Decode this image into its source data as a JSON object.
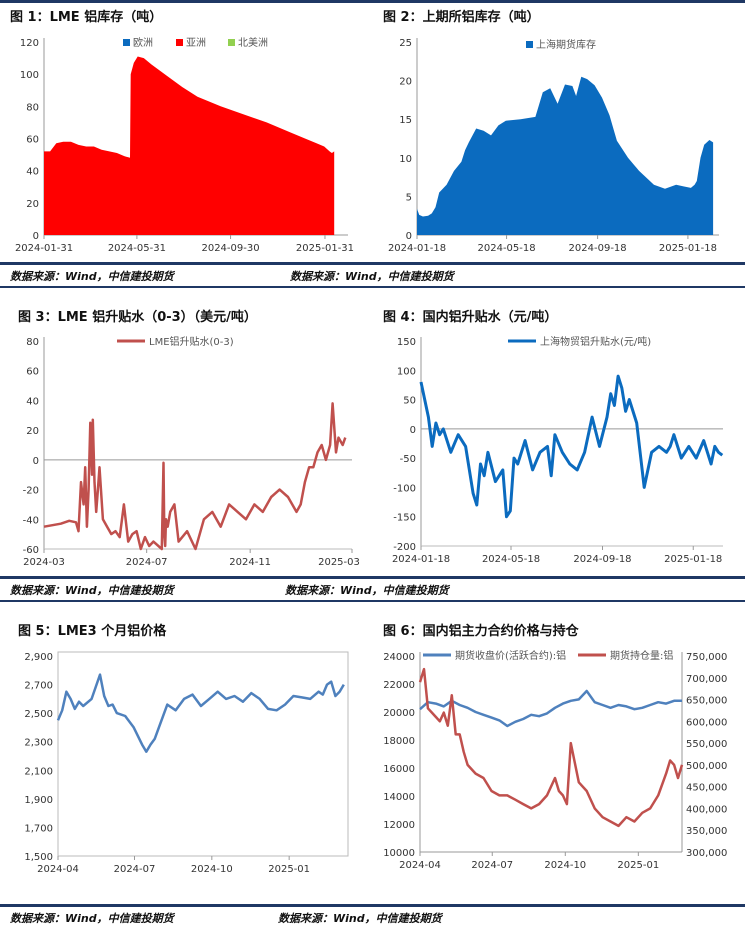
{
  "colors": {
    "navy": "#1f3864",
    "red": "#ff0000",
    "blue": "#0b6bbf",
    "line_red": "#c0504d",
    "line_blue": "#4f81bd",
    "green": "#92d050"
  },
  "figures": [
    {
      "title": "图 1：LME 铝库存（吨）",
      "source": "数据来源：Wind，中信建投期货"
    },
    {
      "title": "图 2：上期所铝库存（吨）",
      "source": "数据来源：Wind，中信建投期货"
    },
    {
      "title": "图 3：LME 铝升贴水（0-3）（美元/吨）",
      "source": "数据来源：Wind，中信建投期货"
    },
    {
      "title": "图 4：国内铝升贴水（元/吨）",
      "source": "数据来源：Wind，中信建投期货"
    },
    {
      "title": "图 5：LME3 个月铝价格",
      "source": ""
    },
    {
      "title": "图 6：国内铝主力合约价格与持仓",
      "source": ""
    }
  ],
  "bottom_sources": [
    "数据来源：Wind，中信建投期货",
    "数据来源：Wind，中信建投期货"
  ],
  "chart_data": [
    {
      "type": "area",
      "title": "图 1：LME 铝库存（吨）",
      "legend": [
        "欧洲",
        "亚洲",
        "北美洲"
      ],
      "legend_colors": [
        "#0b6bbf",
        "#ff0000",
        "#92d050"
      ],
      "ylim": [
        0,
        120
      ],
      "yticks": [
        0,
        20,
        40,
        60,
        80,
        100,
        120
      ],
      "xlim": [
        0,
        396
      ],
      "xticks": [
        {
          "x": 0,
          "label": "2024-01-31"
        },
        {
          "x": 121,
          "label": "2024-05-31"
        },
        {
          "x": 243,
          "label": "2024-09-30"
        },
        {
          "x": 366,
          "label": "2025-01-31"
        }
      ],
      "series": [
        {
          "name": "亚洲",
          "color": "#ff0000",
          "x": [
            0,
            8,
            16,
            25,
            35,
            45,
            55,
            65,
            75,
            85,
            95,
            105,
            112,
            113,
            117,
            122,
            130,
            140,
            160,
            180,
            200,
            230,
            260,
            290,
            320,
            340,
            355,
            365,
            372,
            375,
            378
          ],
          "y": [
            52,
            52,
            57,
            58,
            58,
            56,
            55,
            55,
            53,
            52,
            51,
            49,
            48,
            100,
            107,
            111,
            110,
            106,
            99,
            92,
            86,
            80,
            75,
            70,
            64,
            60,
            57,
            55,
            52,
            51,
            52
          ]
        }
      ]
    },
    {
      "type": "area",
      "title": "图 2：上期所铝库存（吨）",
      "legend": [
        "上海期货库存"
      ],
      "legend_colors": [
        "#0b6bbf"
      ],
      "ylim": [
        0,
        25
      ],
      "yticks": [
        0,
        5,
        10,
        15,
        20,
        25
      ],
      "xlim": [
        0,
        408
      ],
      "xticks": [
        {
          "x": 0,
          "label": "2024-01-18"
        },
        {
          "x": 121,
          "label": "2024-05-18"
        },
        {
          "x": 244,
          "label": "2024-09-18"
        },
        {
          "x": 366,
          "label": "2025-01-18"
        }
      ],
      "series": [
        {
          "name": "上海期货库存",
          "color": "#0b6bbf",
          "x": [
            0,
            3,
            8,
            15,
            20,
            25,
            30,
            40,
            50,
            60,
            65,
            70,
            80,
            90,
            100,
            110,
            120,
            140,
            160,
            170,
            180,
            190,
            200,
            210,
            215,
            220,
            222,
            230,
            240,
            250,
            260,
            270,
            285,
            300,
            320,
            335,
            350,
            360,
            370,
            375,
            378,
            383,
            388,
            395,
            400
          ],
          "y": [
            3.4,
            2.6,
            2.4,
            2.5,
            2.8,
            3.6,
            5.5,
            6.5,
            8.3,
            9.5,
            11,
            12,
            13.8,
            13.5,
            12.9,
            14.2,
            14.8,
            15,
            15.3,
            18.5,
            19,
            17,
            19.5,
            19.3,
            18,
            19.8,
            20.5,
            20.2,
            19.4,
            17.8,
            15.5,
            12.2,
            10,
            8.3,
            6.5,
            6,
            6.5,
            6.3,
            6.1,
            6.5,
            7,
            10,
            11.7,
            12.3,
            12
          ]
        }
      ]
    },
    {
      "type": "line",
      "title": "图 3：LME 铝升贴水（0-3）（美元/吨）",
      "legend": [
        "LME铝升贴水(0-3)"
      ],
      "ylim": [
        -60,
        80
      ],
      "yticks": [
        -60,
        -40,
        -20,
        0,
        20,
        40,
        60,
        80
      ],
      "xlim": [
        0,
        366
      ],
      "xticks": [
        {
          "x": 0,
          "label": "2024-03"
        },
        {
          "x": 122,
          "label": "2024-07"
        },
        {
          "x": 245,
          "label": "2024-11"
        },
        {
          "x": 366,
          "label": "2025-03"
        }
      ],
      "series": [
        {
          "name": "LME铝升贴水(0-3)",
          "color": "#c0504d",
          "x": [
            0,
            20,
            30,
            38,
            41,
            44,
            47,
            49,
            51,
            53,
            55,
            57,
            58,
            60,
            62,
            64,
            66,
            70,
            75,
            80,
            85,
            90,
            95,
            100,
            105,
            110,
            115,
            120,
            125,
            130,
            140,
            142,
            143,
            144,
            145,
            147,
            150,
            155,
            160,
            170,
            180,
            190,
            200,
            210,
            220,
            230,
            240,
            250,
            260,
            270,
            280,
            290,
            300,
            305,
            310,
            315,
            320,
            325,
            330,
            335,
            340,
            343,
            347,
            350,
            355,
            358
          ],
          "y": [
            -45,
            -43,
            -41,
            -42,
            -48,
            -15,
            -30,
            -5,
            -45,
            -20,
            25,
            -10,
            27,
            -15,
            -35,
            -20,
            -5,
            -40,
            -45,
            -50,
            -48,
            -52,
            -30,
            -55,
            -50,
            -48,
            -60,
            -52,
            -58,
            -55,
            -60,
            -2,
            -50,
            -58,
            -40,
            -45,
            -35,
            -30,
            -55,
            -48,
            -60,
            -40,
            -35,
            -45,
            -30,
            -35,
            -40,
            -30,
            -35,
            -25,
            -20,
            -25,
            -35,
            -30,
            -15,
            -5,
            -5,
            5,
            10,
            0,
            10,
            38,
            5,
            15,
            10,
            15
          ]
        }
      ]
    },
    {
      "type": "line",
      "title": "图 4：国内铝升贴水（元/吨）",
      "legend": [
        "上海物贸铝升贴水(元/吨)"
      ],
      "ylim": [
        -200,
        150
      ],
      "yticks": [
        -200,
        -150,
        -100,
        -50,
        0,
        50,
        100,
        150
      ],
      "xlim": [
        0,
        406
      ],
      "xticks": [
        {
          "x": 0,
          "label": "2024-01-18"
        },
        {
          "x": 121,
          "label": "2024-05-18"
        },
        {
          "x": 244,
          "label": "2024-09-18"
        },
        {
          "x": 366,
          "label": "2025-01-18"
        }
      ],
      "series": [
        {
          "name": "上海物贸铝升贴水(元/吨)",
          "color": "#0b6bbf",
          "x": [
            0,
            5,
            10,
            15,
            20,
            25,
            30,
            40,
            50,
            60,
            70,
            75,
            80,
            85,
            90,
            100,
            110,
            115,
            120,
            125,
            130,
            140,
            150,
            160,
            170,
            175,
            180,
            190,
            200,
            210,
            220,
            230,
            240,
            250,
            255,
            260,
            265,
            270,
            275,
            280,
            290,
            300,
            310,
            320,
            330,
            335,
            340,
            350,
            360,
            370,
            380,
            390,
            395,
            400,
            405
          ],
          "y": [
            80,
            50,
            20,
            -30,
            10,
            -10,
            0,
            -40,
            -10,
            -30,
            -110,
            -130,
            -60,
            -80,
            -40,
            -90,
            -70,
            -150,
            -140,
            -50,
            -60,
            -20,
            -70,
            -40,
            -30,
            -80,
            -10,
            -40,
            -60,
            -70,
            -40,
            20,
            -30,
            20,
            60,
            40,
            90,
            70,
            30,
            50,
            10,
            -100,
            -40,
            -30,
            -40,
            -30,
            -10,
            -50,
            -30,
            -50,
            -20,
            -60,
            -30,
            -40,
            -45
          ]
        }
      ]
    },
    {
      "type": "line",
      "title": "图 5：LME3 个月铝价格",
      "ylim": [
        1500,
        2900
      ],
      "yticks": [
        1500,
        1700,
        1900,
        2100,
        2300,
        2500,
        2700,
        2900
      ],
      "ytick_labels": [
        "1,500",
        "1,700",
        "1,900",
        "2,100",
        "2,300",
        "2,500",
        "2,700",
        "2,900"
      ],
      "xlim": [
        0,
        345
      ],
      "xticks": [
        {
          "x": 0,
          "label": "2024-04"
        },
        {
          "x": 91,
          "label": "2024-07"
        },
        {
          "x": 183,
          "label": "2024-10"
        },
        {
          "x": 275,
          "label": "2025-01"
        }
      ],
      "series": [
        {
          "name": "",
          "color": "#4f81bd",
          "x": [
            0,
            5,
            10,
            15,
            20,
            25,
            30,
            40,
            50,
            55,
            60,
            65,
            70,
            80,
            90,
            100,
            105,
            110,
            115,
            120,
            130,
            140,
            150,
            160,
            170,
            180,
            190,
            200,
            210,
            220,
            230,
            240,
            250,
            260,
            270,
            280,
            290,
            300,
            310,
            315,
            320,
            325,
            330,
            335,
            340
          ],
          "y": [
            2450,
            2520,
            2650,
            2600,
            2530,
            2580,
            2550,
            2600,
            2770,
            2620,
            2550,
            2560,
            2500,
            2480,
            2400,
            2280,
            2230,
            2280,
            2320,
            2400,
            2560,
            2520,
            2600,
            2630,
            2550,
            2600,
            2650,
            2600,
            2620,
            2580,
            2640,
            2600,
            2530,
            2520,
            2560,
            2620,
            2610,
            2600,
            2650,
            2630,
            2700,
            2720,
            2620,
            2650,
            2700
          ]
        }
      ]
    },
    {
      "type": "line",
      "title": "图 6：国内铝主力合约价格与持仓",
      "legend": [
        "期货收盘价(活跃合约):铝",
        "期货持仓量:铝"
      ],
      "ylim": [
        10000,
        24000
      ],
      "yticks": [
        10000,
        12000,
        14000,
        16000,
        18000,
        20000,
        22000,
        24000
      ],
      "y2lim": [
        300000,
        750000
      ],
      "y2ticks": [
        300000,
        350000,
        400000,
        450000,
        500000,
        550000,
        600000,
        650000,
        700000,
        750000
      ],
      "y2tick_labels": [
        "300,000",
        "350,000",
        "400,000",
        "450,000",
        "500,000",
        "550,000",
        "600,000",
        "650,000",
        "700,000",
        "750,000"
      ],
      "xlim": [
        0,
        330
      ],
      "xticks": [
        {
          "x": 0,
          "label": "2024-04"
        },
        {
          "x": 91,
          "label": "2024-07"
        },
        {
          "x": 183,
          "label": "2024-10"
        },
        {
          "x": 275,
          "label": "2025-01"
        }
      ],
      "series": [
        {
          "name": "期货收盘价(活跃合约):铝",
          "color": "#4f81bd",
          "axis": "left",
          "x": [
            0,
            10,
            20,
            30,
            40,
            50,
            60,
            70,
            80,
            90,
            100,
            110,
            120,
            130,
            140,
            150,
            160,
            170,
            180,
            190,
            200,
            210,
            220,
            230,
            240,
            250,
            260,
            270,
            280,
            290,
            300,
            310,
            320,
            330
          ],
          "y": [
            20200,
            20700,
            20600,
            20400,
            20800,
            20500,
            20300,
            20000,
            19800,
            19600,
            19400,
            19000,
            19300,
            19500,
            19800,
            19700,
            19900,
            20300,
            20600,
            20800,
            20900,
            21500,
            20700,
            20500,
            20300,
            20500,
            20400,
            20200,
            20300,
            20500,
            20700,
            20600,
            20800,
            20800
          ]
        },
        {
          "name": "期货持仓量:铝",
          "color": "#c0504d",
          "axis": "right",
          "x": [
            0,
            5,
            10,
            15,
            20,
            25,
            30,
            35,
            40,
            45,
            50,
            55,
            60,
            70,
            80,
            90,
            100,
            110,
            120,
            130,
            140,
            150,
            160,
            170,
            175,
            180,
            185,
            190,
            200,
            210,
            220,
            230,
            240,
            250,
            260,
            270,
            280,
            290,
            300,
            310,
            315,
            320,
            325,
            330
          ],
          "y": [
            690000,
            720000,
            630000,
            620000,
            610000,
            600000,
            620000,
            590000,
            660000,
            570000,
            570000,
            530000,
            500000,
            480000,
            470000,
            440000,
            430000,
            430000,
            420000,
            410000,
            400000,
            410000,
            430000,
            470000,
            440000,
            430000,
            410000,
            550000,
            460000,
            440000,
            400000,
            380000,
            370000,
            360000,
            380000,
            370000,
            390000,
            400000,
            430000,
            480000,
            510000,
            500000,
            470000,
            500000
          ]
        }
      ]
    }
  ]
}
